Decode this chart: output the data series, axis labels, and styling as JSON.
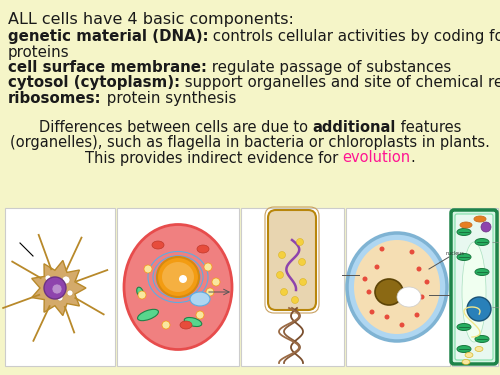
{
  "background_color": "#f5f5c8",
  "title_text": "ALL cells have 4 basic components:",
  "bullet_lines": [
    [
      {
        "t": "genetic material (DNA):",
        "b": true
      },
      {
        "t": " controls cellular activities by coding for",
        "b": false
      }
    ],
    [
      {
        "t": "proteins",
        "b": false
      }
    ],
    [
      {
        "t": "cell surface membrane:",
        "b": true
      },
      {
        "t": " regulate passage of substances",
        "b": false
      }
    ],
    [
      {
        "t": "cytosol (cytoplasm):",
        "b": true
      },
      {
        "t": " support organelles and site of chemical reactions",
        "b": false
      }
    ],
    [
      {
        "t": "ribosomes:",
        "b": true
      },
      {
        "t": " protein synthesis",
        "b": false
      }
    ]
  ],
  "para_line1": [
    {
      "t": "Differences between cells are due to ",
      "b": false,
      "c": "#1a1a1a"
    },
    {
      "t": "additional",
      "b": true,
      "c": "#1a1a1a"
    },
    {
      "t": " features",
      "b": false,
      "c": "#1a1a1a"
    }
  ],
  "para_line2": [
    {
      "t": "(organelles), such as flagella in bacteria or chloroplasts in plants.",
      "b": false,
      "c": "#1a1a1a"
    }
  ],
  "para_line3": [
    {
      "t": "This provides indirect evidence for ",
      "b": false,
      "c": "#1a1a1a"
    },
    {
      "t": "evolution",
      "b": false,
      "c": "#ff1493"
    },
    {
      "t": ".",
      "b": false,
      "c": "#1a1a1a"
    }
  ],
  "text_color": "#1a1a1a",
  "evolution_color": "#ff1493",
  "figsize": [
    5.0,
    3.75
  ],
  "dpi": 100
}
